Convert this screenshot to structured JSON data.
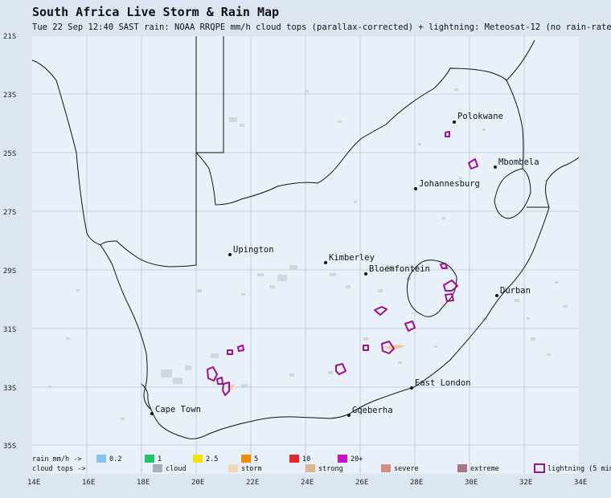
{
  "title": "South Africa Live Storm & Rain Map",
  "subtitle": "Tue 22 Sep 12:40 SAST   rain: NOAA RRQPE mm/h   cloud tops (parallax-corrected) + lightning: Meteosat-12   (no rain-rate",
  "colors": {
    "background": "#dce6f2",
    "map_fill": "#e8f0f9",
    "grid": "#c3d0de",
    "coast": "#111111",
    "cloud": "#d2d5da",
    "lightning": "#a0108c",
    "storm_core": "#efc9a0"
  },
  "lat_labels": [
    "21S",
    "23S",
    "25S",
    "27S",
    "29S",
    "31S",
    "33S",
    "35S"
  ],
  "lon_labels": [
    "14E",
    "16E",
    "18E",
    "20E",
    "22E",
    "24E",
    "26E",
    "28E",
    "30E",
    "32E",
    "34E"
  ],
  "cities": [
    {
      "name": "Polokwane",
      "lon": 29.45,
      "lat": -23.9
    },
    {
      "name": "Mbombela",
      "lon": 30.95,
      "lat": -25.45
    },
    {
      "name": "Johannesburg",
      "lon": 28.05,
      "lat": -26.2
    },
    {
      "name": "Upington",
      "lon": 21.25,
      "lat": -28.45
    },
    {
      "name": "Kimberley",
      "lon": 24.75,
      "lat": -28.75
    },
    {
      "name": "Bloemfontein",
      "lon": 26.2,
      "lat": -29.1
    },
    {
      "name": "Durban",
      "lon": 31.0,
      "lat": -29.85
    },
    {
      "name": "East London",
      "lon": 27.9,
      "lat": -33.0
    },
    {
      "name": "Cape Town",
      "lon": 18.45,
      "lat": -33.9
    },
    {
      "name": "Gqeberha",
      "lon": 25.6,
      "lat": -33.95
    }
  ],
  "legend": {
    "rain_label": "rain mm/h ->",
    "rain_items": [
      {
        "label": "0.2",
        "color": "#86c5ef"
      },
      {
        "label": "1",
        "color": "#1cc46a"
      },
      {
        "label": "2.5",
        "color": "#f6e200"
      },
      {
        "label": "5",
        "color": "#f08c00"
      },
      {
        "label": "10",
        "color": "#e8262a"
      },
      {
        "label": "20+",
        "color": "#c810c8"
      }
    ],
    "cloud_label": "cloud tops ->",
    "cloud_items": [
      {
        "label": "cloud",
        "color": "#a9aeb6"
      },
      {
        "label": "storm",
        "color": "#f0d7b5"
      },
      {
        "label": "strong",
        "color": "#dfb48d"
      },
      {
        "label": "severe",
        "color": "#cf8f86"
      },
      {
        "label": "extreme",
        "color": "#a97488"
      }
    ],
    "lightning_label": "lightning (5 min"
  }
}
